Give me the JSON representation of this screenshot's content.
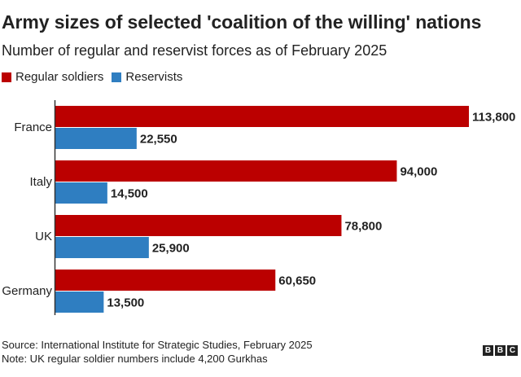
{
  "header": {
    "title": "Army sizes of selected 'coalition of the willing' nations",
    "subtitle": "Number of regular and reservist forces as of February 2025"
  },
  "footer": {
    "source": "Source: International Institute for Strategic Studies, February 2025",
    "note": "Note: UK regular soldier numbers include 4,200 Gurkhas"
  },
  "branding": {
    "letters": [
      "B",
      "B",
      "C"
    ]
  },
  "colors": {
    "regular": "#bb0000",
    "reservist": "#2f7ec1",
    "axis": "#333333"
  },
  "chart_data": {
    "type": "bar",
    "orientation": "horizontal",
    "title": "Army sizes of selected 'coalition of the willing' nations",
    "subtitle": "Number of regular and reservist forces as of February 2025",
    "categories": [
      "France",
      "Italy",
      "UK",
      "Germany"
    ],
    "series": [
      {
        "name": "Regular soldiers",
        "values": [
          113800,
          94000,
          78800,
          60650
        ],
        "labels": [
          "113,800",
          "94,000",
          "78,800",
          "60,650"
        ]
      },
      {
        "name": "Reservists",
        "values": [
          22550,
          14500,
          25900,
          13500
        ],
        "labels": [
          "22,550",
          "14,500",
          "25,900",
          "13,500"
        ]
      }
    ],
    "xlim": [
      0,
      113800
    ],
    "legend_position": "top-left",
    "grid": false
  }
}
